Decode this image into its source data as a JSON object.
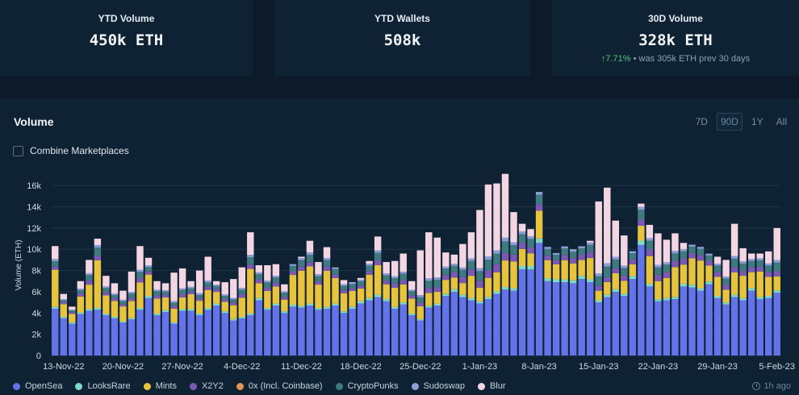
{
  "stats": [
    {
      "title": "YTD Volume",
      "value": "450k ETH"
    },
    {
      "title": "YTD Wallets",
      "value": "508k"
    },
    {
      "title": "30D Volume",
      "value": "328k ETH",
      "change_pct": "7.71%",
      "change_note": "• was 305k ETH prev 30 days"
    }
  ],
  "panel": {
    "title": "Volume",
    "ranges": [
      "7D",
      "90D",
      "1Y",
      "All"
    ],
    "active_range": "90D",
    "combine_label": "Combine Marketplaces"
  },
  "updated": "1h ago",
  "colors": {
    "OpenSea": "#6473ea",
    "LooksRare": "#7fd8c8",
    "Mints": "#e8c33c",
    "X2Y2": "#7c58b4",
    "0x (Incl. Coinbase)": "#e3954a",
    "CryptoPunks": "#3e7a80",
    "Sudoswap": "#8d9ed7",
    "Blur": "#f4d6e3"
  },
  "chart_data": {
    "type": "bar",
    "stacked": true,
    "title": "Volume",
    "ylabel": "Volume (ETH)",
    "ylim": [
      0,
      17000
    ],
    "yticks": [
      "0",
      "2k",
      "4k",
      "6k",
      "8k",
      "10k",
      "12k",
      "14k",
      "16k"
    ],
    "ytick_values": [
      0,
      2000,
      4000,
      6000,
      8000,
      10000,
      12000,
      14000,
      16000
    ],
    "x_tick_labels": [
      "13-Nov-22",
      "20-Nov-22",
      "27-Nov-22",
      "4-Dec-22",
      "11-Dec-22",
      "18-Dec-22",
      "25-Dec-22",
      "1-Jan-23",
      "8-Jan-23",
      "15-Jan-23",
      "22-Jan-23",
      "29-Jan-23",
      "5-Feb-23"
    ],
    "x_tick_index": [
      1,
      8,
      15,
      22,
      29,
      36,
      43,
      50,
      57,
      64,
      71,
      78,
      85
    ],
    "legend": [
      "OpenSea",
      "LooksRare",
      "Mints",
      "X2Y2",
      "0x (Incl. Coinbase)",
      "CryptoPunks",
      "Sudoswap",
      "Blur"
    ],
    "stack_order": [
      "OpenSea",
      "LooksRare",
      "Mints",
      "X2Y2",
      "0x (Incl. Coinbase)",
      "CryptoPunks",
      "Sudoswap",
      "Blur"
    ],
    "totals": [
      10300,
      5800,
      4600,
      7000,
      9000,
      11000,
      7500,
      6800,
      6100,
      7900,
      10300,
      9200,
      7000,
      6800,
      7800,
      8200,
      7000,
      8000,
      9300,
      7000,
      6900,
      7200,
      8300,
      11600,
      8500,
      8500,
      8600,
      6700,
      8300,
      9300,
      10800,
      8800,
      10200,
      8200,
      7100,
      6900,
      7300,
      8900,
      11200,
      8800,
      8900,
      9600,
      7000,
      9900,
      11600,
      11100,
      9700,
      9500,
      10500,
      11600,
      13700,
      16100,
      16200,
      17100,
      13500,
      12400,
      11900,
      13900,
      9800,
      8700,
      9700,
      10000,
      9800,
      10800,
      14500,
      15800,
      12700,
      11300,
      9100,
      14300,
      12300,
      11500,
      10900,
      11500,
      10600,
      9000,
      9100,
      8600,
      9300,
      9000,
      12400,
      10100,
      9600,
      9600,
      9800,
      12000
    ],
    "opensea": [
      4400,
      3500,
      3000,
      3900,
      4200,
      4300,
      3800,
      3500,
      3100,
      3400,
      4300,
      5400,
      3800,
      4100,
      3000,
      4200,
      4200,
      3800,
      4300,
      4700,
      4000,
      3300,
      3500,
      3800,
      5200,
      4300,
      4700,
      4000,
      4600,
      4500,
      4700,
      4300,
      4400,
      4700,
      4000,
      4400,
      4900,
      5200,
      5500,
      5100,
      4400,
      4800,
      3800,
      3300,
      4500,
      4700,
      5600,
      6000,
      5500,
      5200,
      4900,
      5300,
      5800,
      6200,
      6100,
      8100,
      8100,
      10600,
      7000,
      6900,
      6900,
      6800,
      7200,
      6900,
      5000,
      5500,
      6000,
      5600,
      7200,
      10400,
      6500,
      5100,
      5200,
      5300,
      6500,
      6400,
      6100,
      6700,
      5400,
      4800,
      5500,
      5200,
      6100,
      5300,
      5400,
      5900
    ],
    "mints": [
      3500,
      1200,
      800,
      1500,
      2300,
      4500,
      1700,
      1500,
      1400,
      1600,
      2400,
      2000,
      1400,
      1200,
      1300,
      1100,
      1400,
      1200,
      1700,
      1100,
      900,
      1300,
      1800,
      4200,
      1400,
      1600,
      1600,
      1100,
      2800,
      3300,
      3500,
      2200,
      3400,
      2400,
      1700,
      1500,
      1200,
      2200,
      2800,
      1400,
      1800,
      1700,
      1400,
      1200,
      1200,
      1100,
      1300,
      1100,
      1100,
      2100,
      1300,
      1800,
      1800,
      2500,
      2500,
      1600,
      1200,
      2600,
      1700,
      1400,
      1800,
      1600,
      1500,
      2000,
      900,
      1200,
      1500,
      1200,
      1100,
      1400,
      2600,
      1700,
      1900,
      2800,
      1800,
      2500,
      2600,
      1500,
      1800,
      1200,
      2100,
      2100,
      1500,
      2400,
      1800,
      1300
    ],
    "x2y2": [
      300,
      200,
      150,
      300,
      400,
      400,
      300,
      250,
      200,
      300,
      400,
      300,
      300,
      250,
      250,
      300,
      250,
      250,
      300,
      250,
      250,
      250,
      350,
      400,
      350,
      300,
      350,
      250,
      350,
      400,
      400,
      300,
      400,
      350,
      300,
      250,
      300,
      350,
      450,
      350,
      400,
      400,
      300,
      350,
      450,
      450,
      450,
      500,
      550,
      600,
      650,
      700,
      750,
      700,
      650,
      600,
      550,
      600,
      450,
      400,
      500,
      500,
      500,
      550,
      450,
      450,
      500,
      500,
      450,
      600,
      650,
      600,
      550,
      600,
      550,
      500,
      500,
      450,
      450,
      450,
      500,
      450,
      450,
      450,
      450,
      500
    ],
    "punks": [
      500,
      150,
      150,
      300,
      500,
      800,
      400,
      300,
      300,
      400,
      600,
      400,
      400,
      300,
      300,
      400,
      300,
      300,
      400,
      300,
      300,
      300,
      400,
      700,
      500,
      500,
      500,
      400,
      500,
      600,
      700,
      500,
      600,
      500,
      400,
      400,
      400,
      500,
      700,
      500,
      500,
      600,
      400,
      500,
      700,
      700,
      600,
      600,
      700,
      800,
      900,
      1000,
      1000,
      1100,
      900,
      800,
      800,
      900,
      600,
      500,
      600,
      600,
      600,
      700,
      900,
      1000,
      800,
      700,
      600,
      900,
      800,
      700,
      700,
      700,
      700,
      600,
      600,
      500,
      600,
      600,
      800,
      700,
      600,
      600,
      600,
      800
    ]
  }
}
